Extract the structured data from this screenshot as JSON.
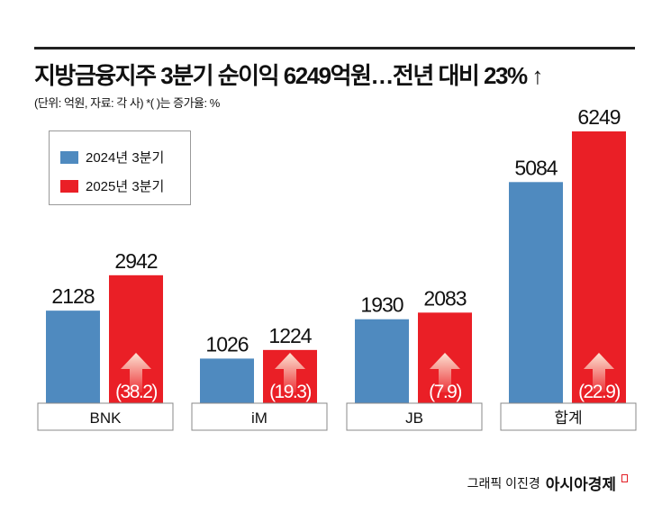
{
  "title": "지방금융지주 3분기 순이익 6249억원…전년 대비 23% ↑",
  "subtitle": "(단위: 억원, 자료: 각 사)  *(  )는 증가율: %",
  "credit": {
    "byline": "그래픽 이진경",
    "logo": "아시아경제"
  },
  "chart_data": {
    "type": "bar",
    "categories": [
      "BNK",
      "iM",
      "JB",
      "합계"
    ],
    "series": [
      {
        "name": "2024년 3분기",
        "color": "#4f8abf",
        "values": [
          2128,
          1026,
          1930,
          5084
        ]
      },
      {
        "name": "2025년 3분기",
        "color": "#ea1f26",
        "values": [
          2942,
          1224,
          2083,
          6249
        ]
      }
    ],
    "growth_labels": [
      "(38.2)",
      "(19.3)",
      "(7.9)",
      "(22.9)"
    ],
    "growth_rates": [
      38.2,
      19.3,
      7.9,
      22.9
    ],
    "legend": "top-left",
    "grid": false
  }
}
